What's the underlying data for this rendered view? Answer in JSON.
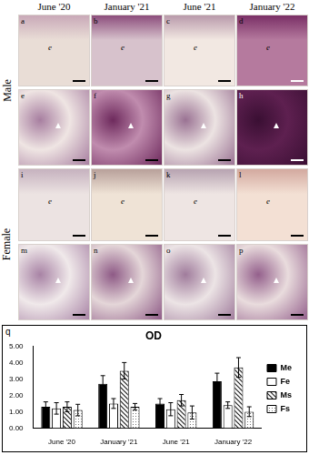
{
  "figure": {
    "columns": [
      "June '20",
      "January '21",
      "June '21",
      "January '22"
    ],
    "rows": [
      "Male",
      "Female"
    ],
    "panels": [
      {
        "letter": "a",
        "mark": "e"
      },
      {
        "letter": "b",
        "mark": "e"
      },
      {
        "letter": "c",
        "mark": "e"
      },
      {
        "letter": "d",
        "mark": "e"
      },
      {
        "letter": "e"
      },
      {
        "letter": "f"
      },
      {
        "letter": "g"
      },
      {
        "letter": "h"
      },
      {
        "letter": "i",
        "mark": "e"
      },
      {
        "letter": "j",
        "mark": "e"
      },
      {
        "letter": "k",
        "mark": "e"
      },
      {
        "letter": "l",
        "mark": "e"
      },
      {
        "letter": "m"
      },
      {
        "letter": "n"
      },
      {
        "letter": "o"
      },
      {
        "letter": "p"
      }
    ],
    "chart_letter": "q"
  },
  "chart_data": {
    "type": "bar",
    "title": "OD",
    "categories": [
      "June '20",
      "January '21",
      "June '21",
      "January '22"
    ],
    "series": [
      {
        "name": "Me",
        "color": "#000000",
        "values": [
          1.3,
          2.7,
          1.5,
          2.85
        ],
        "errors": [
          0.3,
          0.5,
          0.3,
          0.5
        ]
      },
      {
        "name": "Fe",
        "color": "#ffffff",
        "values": [
          1.2,
          1.5,
          1.15,
          1.4
        ],
        "errors": [
          0.35,
          0.3,
          0.4,
          0.2
        ]
      },
      {
        "name": "Ms",
        "color": "#222222",
        "values": [
          1.3,
          3.5,
          1.7,
          3.7
        ],
        "errors": [
          0.3,
          0.5,
          0.35,
          0.6
        ]
      },
      {
        "name": "Fs",
        "color": "#777777",
        "values": [
          1.1,
          1.3,
          0.95,
          1.0
        ],
        "errors": [
          0.35,
          0.2,
          0.4,
          0.3
        ]
      }
    ],
    "ylim": [
      0,
      5
    ],
    "yticks": [
      {
        "value": 0,
        "label": "0.00"
      },
      {
        "value": 1,
        "label": "1.00"
      },
      {
        "value": 2,
        "label": "2.00"
      },
      {
        "value": 3,
        "label": "3.00"
      },
      {
        "value": 4,
        "label": "4.00"
      },
      {
        "value": 5,
        "label": "5.00"
      }
    ],
    "grid": false,
    "legend": "right"
  }
}
